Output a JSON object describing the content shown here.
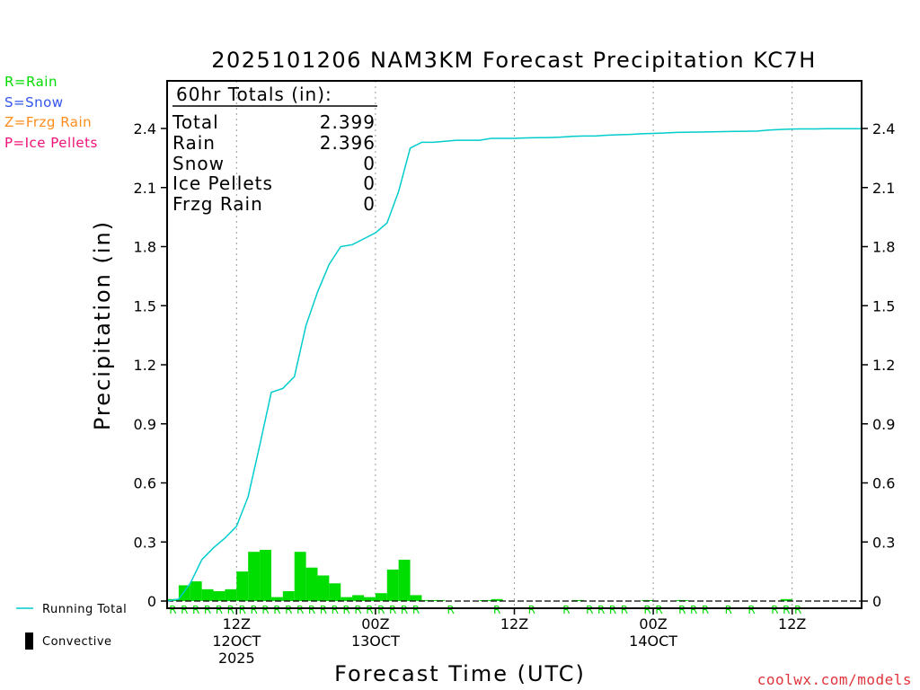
{
  "chart_data": {
    "type": "bar+line",
    "title": "2025101206 NAM3KM Forecast Precipitation KC7H",
    "ylabel": "Precipitation (in)",
    "xlabel": "Forecast Time (UTC)",
    "ylim": [
      0,
      2.6
    ],
    "yticks": [
      0,
      0.3,
      0.6,
      0.9,
      1.2,
      1.5,
      1.8,
      2.1,
      2.4
    ],
    "yticklabels": [
      "0",
      "0.3",
      "0.6",
      "0.9",
      "1.2",
      "1.5",
      "1.8",
      "2.1",
      "2.4"
    ],
    "xlim_hours": [
      0,
      60
    ],
    "xticks": [
      {
        "hour": 6,
        "label": "12Z",
        "sub1": "12OCT",
        "sub2": "2025"
      },
      {
        "hour": 18,
        "label": "00Z",
        "sub1": "13OCT",
        "sub2": ""
      },
      {
        "hour": 30,
        "label": "12Z",
        "sub1": "",
        "sub2": ""
      },
      {
        "hour": 42,
        "label": "00Z",
        "sub1": "14OCT",
        "sub2": ""
      },
      {
        "hour": 54,
        "label": "12Z",
        "sub1": "",
        "sub2": ""
      }
    ],
    "bar_hours": [
      1,
      2,
      3,
      4,
      5,
      6,
      7,
      8,
      9,
      10,
      11,
      12,
      13,
      14,
      15,
      16,
      17,
      18,
      19,
      20,
      21,
      22,
      23,
      24,
      25,
      26,
      27,
      28,
      29,
      30,
      31,
      32,
      33,
      34,
      35,
      36,
      37,
      38,
      39,
      40,
      41,
      42,
      43,
      44,
      45,
      46,
      47,
      48,
      49,
      50,
      51,
      52,
      53,
      54,
      55,
      56,
      57,
      58,
      59,
      60
    ],
    "hourly_precip": [
      0.01,
      0.08,
      0.1,
      0.06,
      0.05,
      0.06,
      0.15,
      0.25,
      0.26,
      0.02,
      0.05,
      0.25,
      0.17,
      0.13,
      0.09,
      0.02,
      0.03,
      0.02,
      0.04,
      0.16,
      0.21,
      0.03,
      0.005,
      0.005,
      0,
      0,
      0,
      0.005,
      0.01,
      0,
      0,
      0,
      0,
      0,
      0,
      0.005,
      0,
      0,
      0,
      0,
      0,
      0.005,
      0,
      0,
      0.005,
      0,
      0,
      0,
      0,
      0,
      0,
      0,
      0,
      0.01,
      0,
      0,
      0,
      0,
      0,
      0
    ],
    "running_total": {
      "name": "Running Total",
      "hours": [
        0,
        1,
        2,
        3,
        4,
        5,
        6,
        7,
        8,
        9,
        10,
        11,
        12,
        13,
        14,
        15,
        16,
        17,
        18,
        19,
        20,
        21,
        22,
        23,
        24,
        25,
        26,
        27,
        28,
        29,
        30,
        31,
        32,
        33,
        34,
        35,
        36,
        37,
        38,
        39,
        40,
        41,
        42,
        43,
        44,
        45,
        46,
        47,
        48,
        49,
        50,
        51,
        52,
        53,
        54,
        55,
        56,
        57,
        58,
        59,
        60
      ],
      "values": [
        0,
        0.01,
        0.09,
        0.21,
        0.27,
        0.32,
        0.38,
        0.53,
        0.79,
        1.06,
        1.08,
        1.14,
        1.4,
        1.57,
        1.71,
        1.8,
        1.81,
        1.84,
        1.87,
        1.92,
        2.08,
        2.3,
        2.33,
        2.33,
        2.335,
        2.34,
        2.34,
        2.34,
        2.35,
        2.35,
        2.35,
        2.352,
        2.353,
        2.354,
        2.356,
        2.36,
        2.362,
        2.362,
        2.366,
        2.368,
        2.37,
        2.373,
        2.375,
        2.377,
        2.38,
        2.381,
        2.382,
        2.383,
        2.384,
        2.385,
        2.386,
        2.387,
        2.392,
        2.395,
        2.397,
        2.398,
        2.398,
        2.399,
        2.399,
        2.399,
        2.399
      ]
    },
    "ptype_markers": {
      "letter": "R",
      "hours": [
        1,
        2,
        3,
        4,
        5,
        6,
        7,
        8,
        9,
        10,
        11,
        12,
        13,
        14,
        15,
        16,
        17,
        18,
        19,
        20,
        21,
        22,
        25,
        29,
        32,
        35,
        37,
        38,
        39,
        40,
        42,
        43,
        45,
        46,
        47,
        49,
        51,
        53,
        54,
        55
      ]
    },
    "colors": {
      "bars": "#00dd00",
      "line": "#00cccc",
      "rain": "#00dd00",
      "snow": "#3355ee",
      "frzg": "#ff8c1a",
      "ice": "#ee1177",
      "axis": "#000000",
      "grid": "#999999"
    }
  },
  "totals_box": {
    "header": "60hr Totals (in):",
    "rows": [
      {
        "label": "Total",
        "value": "2.399"
      },
      {
        "label": "Rain",
        "value": "2.396"
      },
      {
        "label": "Snow",
        "value": "0"
      },
      {
        "label": "Ice Pellets",
        "value": "0"
      },
      {
        "label": "Frzg Rain",
        "value": "0"
      }
    ]
  },
  "ptype_legend": {
    "rain": "R=Rain",
    "snow": "S=Snow",
    "frzg": "Z=Frzg Rain",
    "ice": "P=Ice Pellets"
  },
  "series_legend": {
    "running_total": "Running Total",
    "convective": "Convective"
  },
  "credit": "coolwx.com/models"
}
